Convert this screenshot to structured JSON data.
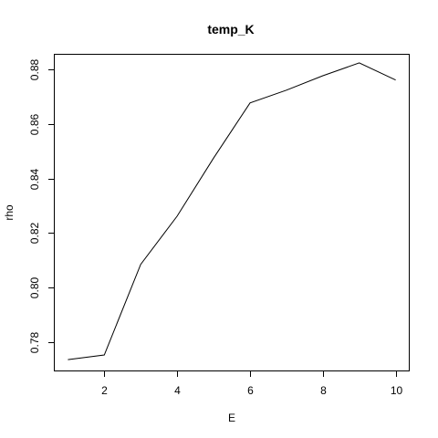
{
  "chart_data": {
    "type": "line",
    "title": "temp_K",
    "xlabel": "E",
    "ylabel": "rho",
    "x": [
      1,
      2,
      3,
      4,
      5,
      6,
      7,
      8,
      9,
      10
    ],
    "series": [
      {
        "values": [
          0.7735,
          0.7752,
          0.8085,
          0.8262,
          0.8475,
          0.8678,
          0.8725,
          0.8778,
          0.8825,
          0.8762
        ]
      }
    ],
    "xlim": [
      0.64,
      10.36
    ],
    "ylim": [
      0.7695,
      0.8855
    ],
    "xticks": [
      2,
      4,
      6,
      8,
      10
    ],
    "xtick_labels": [
      "2",
      "4",
      "6",
      "8",
      "10"
    ],
    "yticks": [
      0.78,
      0.8,
      0.82,
      0.84,
      0.86,
      0.88
    ],
    "ytick_labels": [
      "0.78",
      "0.80",
      "0.82",
      "0.84",
      "0.86",
      "0.88"
    ],
    "grid": false,
    "legend": "none",
    "colors": {
      "line": "#000000",
      "background": "#ffffff"
    }
  }
}
